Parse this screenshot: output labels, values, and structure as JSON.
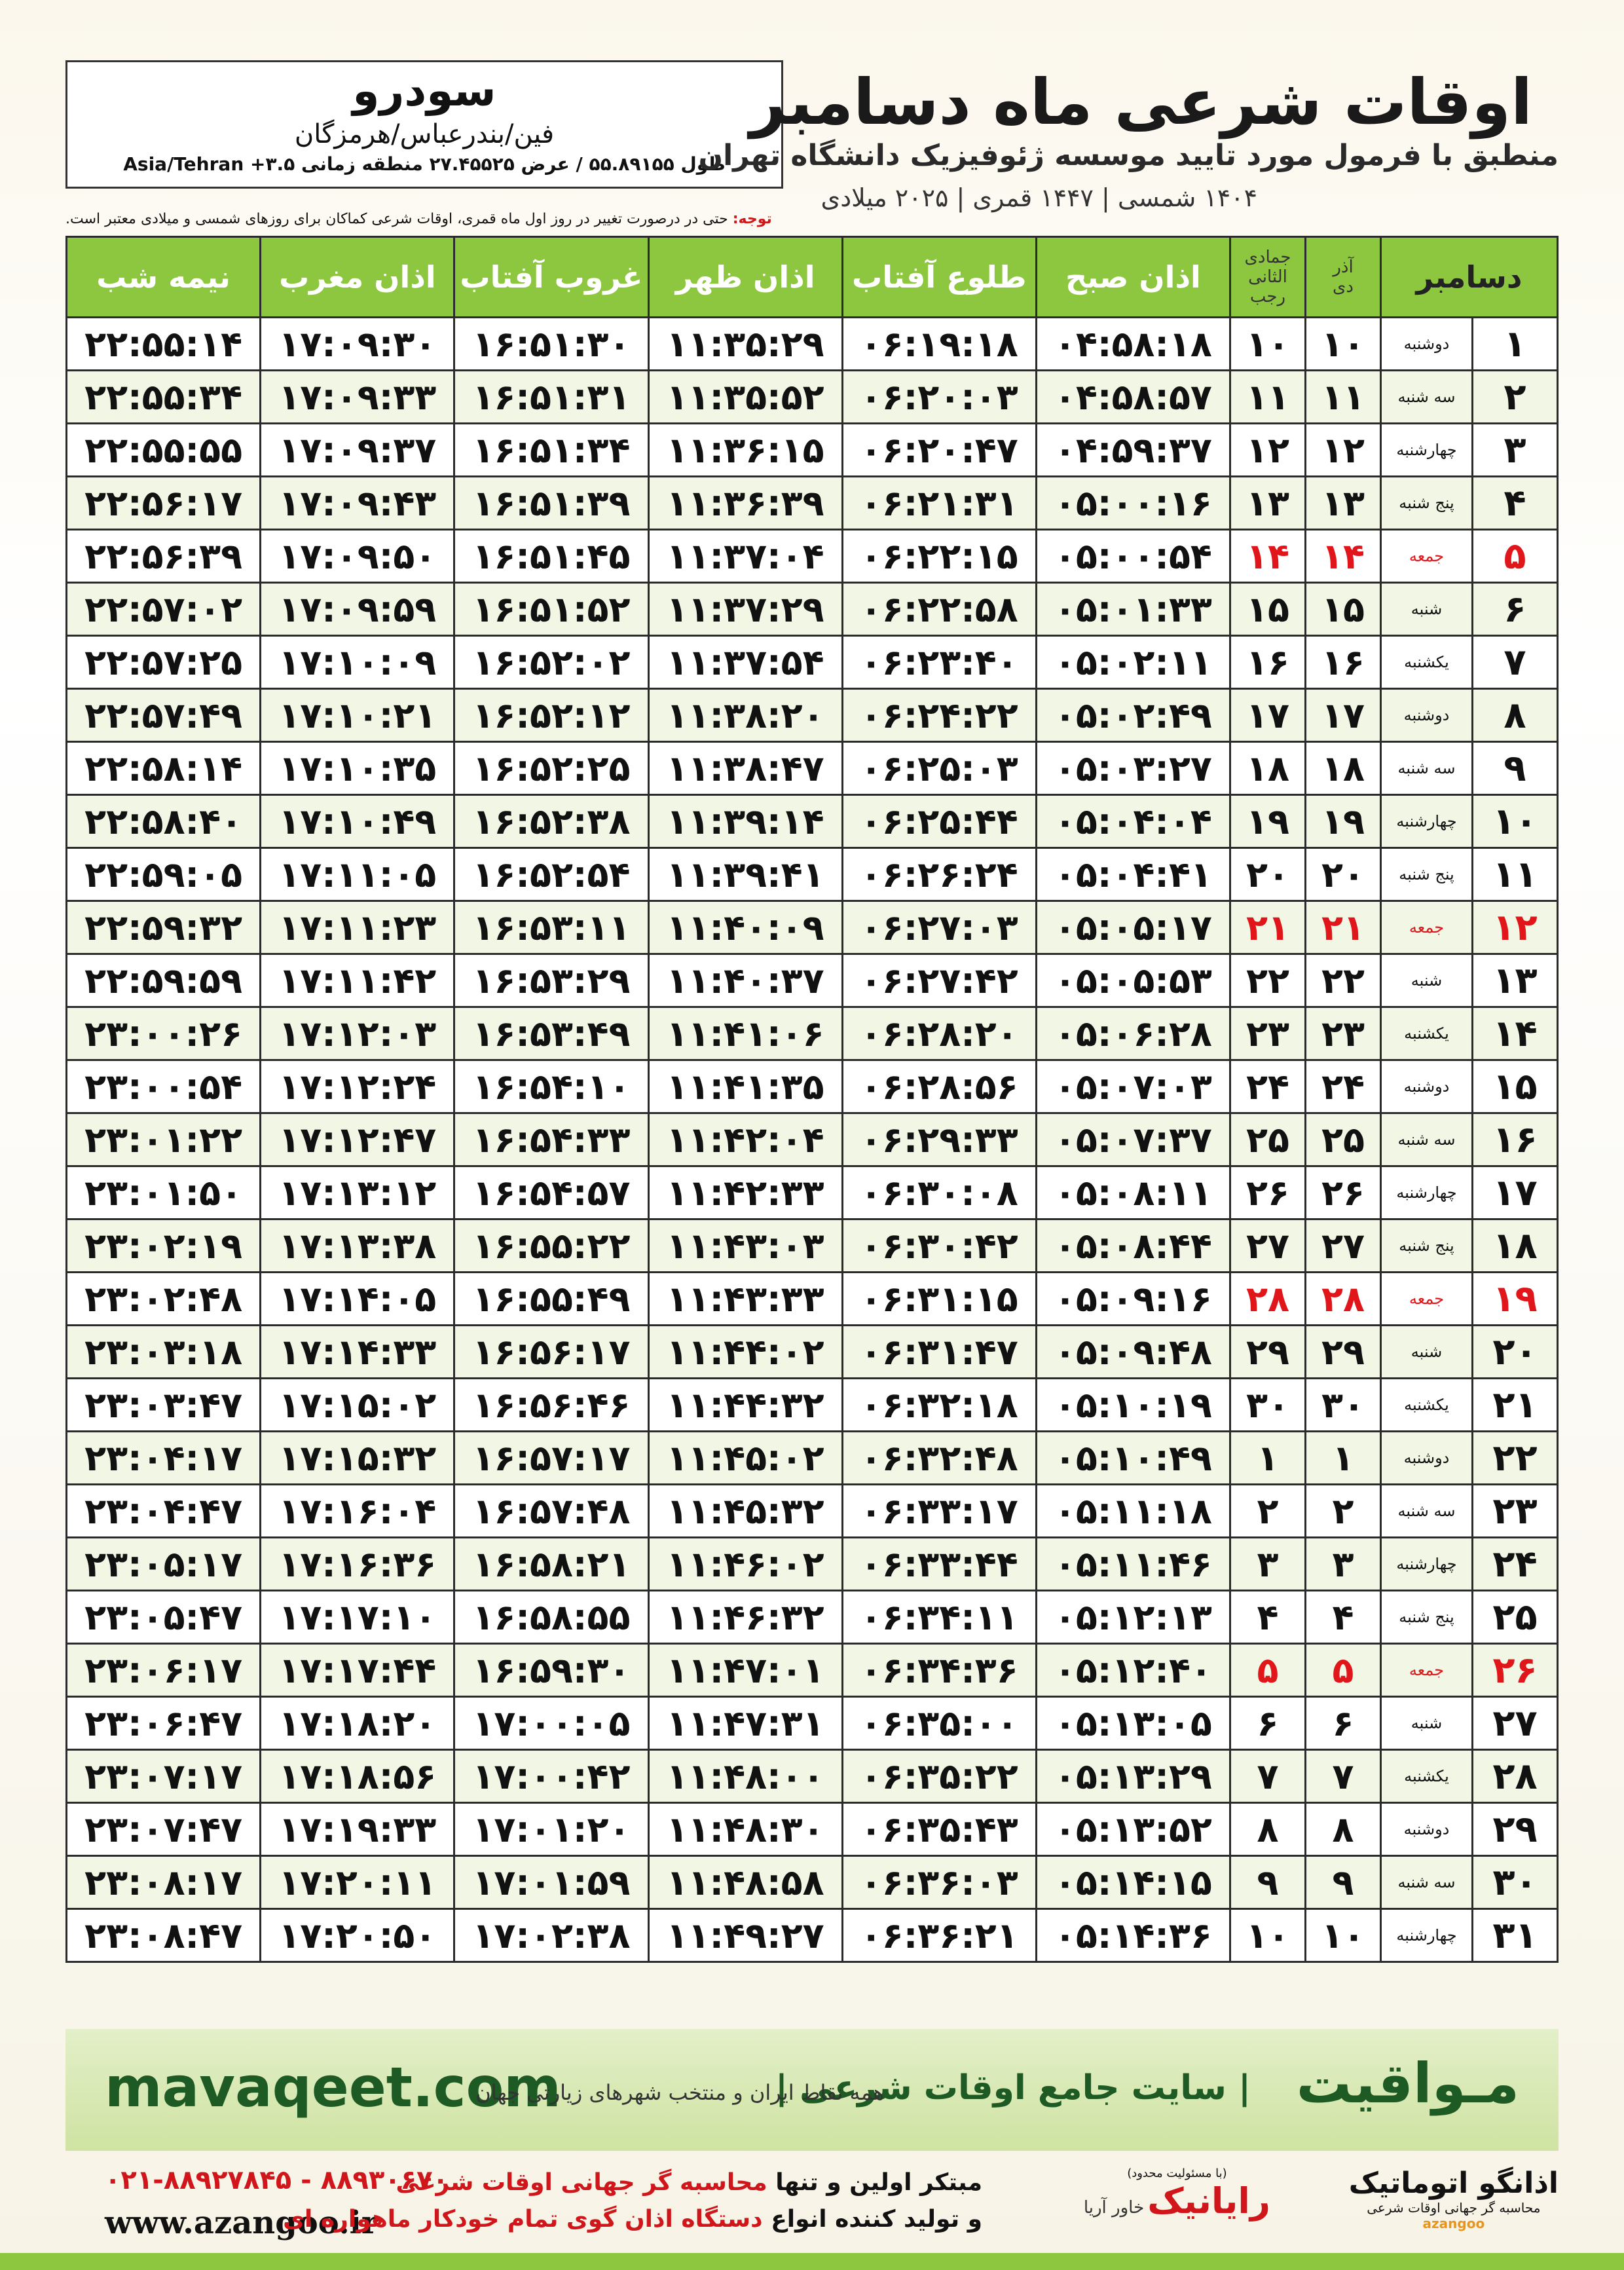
{
  "header": {
    "title": "اوقات شرعی ماه دسامبر",
    "subtitle": "منطبق با فرمول مورد تایید موسسه ژئوفیزیک دانشگاه تهران",
    "dates": "۱۴۰۴ شمسی | ۱۴۴۷ قمری | ۲۰۲۵ میلادی"
  },
  "city": {
    "name": "سودرو",
    "province": "فین/بندرعباس/هرمزگان",
    "coords": "طول ۵۵.۸۹۱۵۵ / عرض ۲۷.۴۵۵۲۵ منطقه زمانی ۳.۵+ Asia/Tehran"
  },
  "note": {
    "label": "توجه:",
    "text": "حتی در درصورت تغییر در روز اول ماه قمری، اوقات شرعی کماکان برای روزهای شمسی و میلادی معتبر است."
  },
  "table": {
    "header": {
      "day": "دسامبر",
      "solar_month": "آذر",
      "solar_sub": "دی",
      "lunar_month": "جمادی الثانی",
      "lunar_sub": "رجب",
      "times": [
        "اذان صبح",
        "طلوع آفتاب",
        "اذان ظهر",
        "غروب آفتاب",
        "اذان مغرب",
        "نیمه شب"
      ]
    },
    "rows": [
      [
        "۱",
        "دوشنبه",
        "۱۰",
        "۱۰",
        "۰۴:۵۸:۱۸",
        "۰۶:۱۹:۱۸",
        "۱۱:۳۵:۲۹",
        "۱۶:۵۱:۳۰",
        "۱۷:۰۹:۳۰",
        "۲۲:۵۵:۱۴"
      ],
      [
        "۲",
        "سه شنبه",
        "۱۱",
        "۱۱",
        "۰۴:۵۸:۵۷",
        "۰۶:۲۰:۰۳",
        "۱۱:۳۵:۵۲",
        "۱۶:۵۱:۳۱",
        "۱۷:۰۹:۳۳",
        "۲۲:۵۵:۳۴"
      ],
      [
        "۳",
        "چهارشنبه",
        "۱۲",
        "۱۲",
        "۰۴:۵۹:۳۷",
        "۰۶:۲۰:۴۷",
        "۱۱:۳۶:۱۵",
        "۱۶:۵۱:۳۴",
        "۱۷:۰۹:۳۷",
        "۲۲:۵۵:۵۵"
      ],
      [
        "۴",
        "پنج شنبه",
        "۱۳",
        "۱۳",
        "۰۵:۰۰:۱۶",
        "۰۶:۲۱:۳۱",
        "۱۱:۳۶:۳۹",
        "۱۶:۵۱:۳۹",
        "۱۷:۰۹:۴۳",
        "۲۲:۵۶:۱۷"
      ],
      [
        "۵",
        "جمعه",
        "۱۴",
        "۱۴",
        "۰۵:۰۰:۵۴",
        "۰۶:۲۲:۱۵",
        "۱۱:۳۷:۰۴",
        "۱۶:۵۱:۴۵",
        "۱۷:۰۹:۵۰",
        "۲۲:۵۶:۳۹"
      ],
      [
        "۶",
        "شنبه",
        "۱۵",
        "۱۵",
        "۰۵:۰۱:۳۳",
        "۰۶:۲۲:۵۸",
        "۱۱:۳۷:۲۹",
        "۱۶:۵۱:۵۲",
        "۱۷:۰۹:۵۹",
        "۲۲:۵۷:۰۲"
      ],
      [
        "۷",
        "یکشنبه",
        "۱۶",
        "۱۶",
        "۰۵:۰۲:۱۱",
        "۰۶:۲۳:۴۰",
        "۱۱:۳۷:۵۴",
        "۱۶:۵۲:۰۲",
        "۱۷:۱۰:۰۹",
        "۲۲:۵۷:۲۵"
      ],
      [
        "۸",
        "دوشنبه",
        "۱۷",
        "۱۷",
        "۰۵:۰۲:۴۹",
        "۰۶:۲۴:۲۲",
        "۱۱:۳۸:۲۰",
        "۱۶:۵۲:۱۲",
        "۱۷:۱۰:۲۱",
        "۲۲:۵۷:۴۹"
      ],
      [
        "۹",
        "سه شنبه",
        "۱۸",
        "۱۸",
        "۰۵:۰۳:۲۷",
        "۰۶:۲۵:۰۳",
        "۱۱:۳۸:۴۷",
        "۱۶:۵۲:۲۵",
        "۱۷:۱۰:۳۵",
        "۲۲:۵۸:۱۴"
      ],
      [
        "۱۰",
        "چهارشنبه",
        "۱۹",
        "۱۹",
        "۰۵:۰۴:۰۴",
        "۰۶:۲۵:۴۴",
        "۱۱:۳۹:۱۴",
        "۱۶:۵۲:۳۸",
        "۱۷:۱۰:۴۹",
        "۲۲:۵۸:۴۰"
      ],
      [
        "۱۱",
        "پنج شنبه",
        "۲۰",
        "۲۰",
        "۰۵:۰۴:۴۱",
        "۰۶:۲۶:۲۴",
        "۱۱:۳۹:۴۱",
        "۱۶:۵۲:۵۴",
        "۱۷:۱۱:۰۵",
        "۲۲:۵۹:۰۵"
      ],
      [
        "۱۲",
        "جمعه",
        "۲۱",
        "۲۱",
        "۰۵:۰۵:۱۷",
        "۰۶:۲۷:۰۳",
        "۱۱:۴۰:۰۹",
        "۱۶:۵۳:۱۱",
        "۱۷:۱۱:۲۳",
        "۲۲:۵۹:۳۲"
      ],
      [
        "۱۳",
        "شنبه",
        "۲۲",
        "۲۲",
        "۰۵:۰۵:۵۳",
        "۰۶:۲۷:۴۲",
        "۱۱:۴۰:۳۷",
        "۱۶:۵۳:۲۹",
        "۱۷:۱۱:۴۲",
        "۲۲:۵۹:۵۹"
      ],
      [
        "۱۴",
        "یکشنبه",
        "۲۳",
        "۲۳",
        "۰۵:۰۶:۲۸",
        "۰۶:۲۸:۲۰",
        "۱۱:۴۱:۰۶",
        "۱۶:۵۳:۴۹",
        "۱۷:۱۲:۰۳",
        "۲۳:۰۰:۲۶"
      ],
      [
        "۱۵",
        "دوشنبه",
        "۲۴",
        "۲۴",
        "۰۵:۰۷:۰۳",
        "۰۶:۲۸:۵۶",
        "۱۱:۴۱:۳۵",
        "۱۶:۵۴:۱۰",
        "۱۷:۱۲:۲۴",
        "۲۳:۰۰:۵۴"
      ],
      [
        "۱۶",
        "سه شنبه",
        "۲۵",
        "۲۵",
        "۰۵:۰۷:۳۷",
        "۰۶:۲۹:۳۳",
        "۱۱:۴۲:۰۴",
        "۱۶:۵۴:۳۳",
        "۱۷:۱۲:۴۷",
        "۲۳:۰۱:۲۲"
      ],
      [
        "۱۷",
        "چهارشنبه",
        "۲۶",
        "۲۶",
        "۰۵:۰۸:۱۱",
        "۰۶:۳۰:۰۸",
        "۱۱:۴۲:۳۳",
        "۱۶:۵۴:۵۷",
        "۱۷:۱۳:۱۲",
        "۲۳:۰۱:۵۰"
      ],
      [
        "۱۸",
        "پنج شنبه",
        "۲۷",
        "۲۷",
        "۰۵:۰۸:۴۴",
        "۰۶:۳۰:۴۲",
        "۱۱:۴۳:۰۳",
        "۱۶:۵۵:۲۲",
        "۱۷:۱۳:۳۸",
        "۲۳:۰۲:۱۹"
      ],
      [
        "۱۹",
        "جمعه",
        "۲۸",
        "۲۸",
        "۰۵:۰۹:۱۶",
        "۰۶:۳۱:۱۵",
        "۱۱:۴۳:۳۳",
        "۱۶:۵۵:۴۹",
        "۱۷:۱۴:۰۵",
        "۲۳:۰۲:۴۸"
      ],
      [
        "۲۰",
        "شنبه",
        "۲۹",
        "۲۹",
        "۰۵:۰۹:۴۸",
        "۰۶:۳۱:۴۷",
        "۱۱:۴۴:۰۲",
        "۱۶:۵۶:۱۷",
        "۱۷:۱۴:۳۳",
        "۲۳:۰۳:۱۸"
      ],
      [
        "۲۱",
        "یکشنبه",
        "۳۰",
        "۳۰",
        "۰۵:۱۰:۱۹",
        "۰۶:۳۲:۱۸",
        "۱۱:۴۴:۳۲",
        "۱۶:۵۶:۴۶",
        "۱۷:۱۵:۰۲",
        "۲۳:۰۳:۴۷"
      ],
      [
        "۲۲",
        "دوشنبه",
        "۱",
        "۱",
        "۰۵:۱۰:۴۹",
        "۰۶:۳۲:۴۸",
        "۱۱:۴۵:۰۲",
        "۱۶:۵۷:۱۷",
        "۱۷:۱۵:۳۲",
        "۲۳:۰۴:۱۷"
      ],
      [
        "۲۳",
        "سه شنبه",
        "۲",
        "۲",
        "۰۵:۱۱:۱۸",
        "۰۶:۳۳:۱۷",
        "۱۱:۴۵:۳۲",
        "۱۶:۵۷:۴۸",
        "۱۷:۱۶:۰۴",
        "۲۳:۰۴:۴۷"
      ],
      [
        "۲۴",
        "چهارشنبه",
        "۳",
        "۳",
        "۰۵:۱۱:۴۶",
        "۰۶:۳۳:۴۴",
        "۱۱:۴۶:۰۲",
        "۱۶:۵۸:۲۱",
        "۱۷:۱۶:۳۶",
        "۲۳:۰۵:۱۷"
      ],
      [
        "۲۵",
        "پنج شنبه",
        "۴",
        "۴",
        "۰۵:۱۲:۱۳",
        "۰۶:۳۴:۱۱",
        "۱۱:۴۶:۳۲",
        "۱۶:۵۸:۵۵",
        "۱۷:۱۷:۱۰",
        "۲۳:۰۵:۴۷"
      ],
      [
        "۲۶",
        "جمعه",
        "۵",
        "۵",
        "۰۵:۱۲:۴۰",
        "۰۶:۳۴:۳۶",
        "۱۱:۴۷:۰۱",
        "۱۶:۵۹:۳۰",
        "۱۷:۱۷:۴۴",
        "۲۳:۰۶:۱۷"
      ],
      [
        "۲۷",
        "شنبه",
        "۶",
        "۶",
        "۰۵:۱۳:۰۵",
        "۰۶:۳۵:۰۰",
        "۱۱:۴۷:۳۱",
        "۱۷:۰۰:۰۵",
        "۱۷:۱۸:۲۰",
        "۲۳:۰۶:۴۷"
      ],
      [
        "۲۸",
        "یکشنبه",
        "۷",
        "۷",
        "۰۵:۱۳:۲۹",
        "۰۶:۳۵:۲۲",
        "۱۱:۴۸:۰۰",
        "۱۷:۰۰:۴۲",
        "۱۷:۱۸:۵۶",
        "۲۳:۰۷:۱۷"
      ],
      [
        "۲۹",
        "دوشنبه",
        "۸",
        "۸",
        "۰۵:۱۳:۵۲",
        "۰۶:۳۵:۴۳",
        "۱۱:۴۸:۳۰",
        "۱۷:۰۱:۲۰",
        "۱۷:۱۹:۳۳",
        "۲۳:۰۷:۴۷"
      ],
      [
        "۳۰",
        "سه شنبه",
        "۹",
        "۹",
        "۰۵:۱۴:۱۵",
        "۰۶:۳۶:۰۳",
        "۱۱:۴۸:۵۸",
        "۱۷:۰۱:۵۹",
        "۱۷:۲۰:۱۱",
        "۲۳:۰۸:۱۷"
      ],
      [
        "۳۱",
        "چهارشنبه",
        "۱۰",
        "۱۰",
        "۰۵:۱۴:۳۶",
        "۰۶:۳۶:۲۱",
        "۱۱:۴۹:۲۷",
        "۱۷:۰۲:۳۸",
        "۱۷:۲۰:۵۰",
        "۲۳:۰۸:۴۷"
      ]
    ]
  },
  "footer": {
    "site": "mavaqeet.com",
    "brand": "مـواقیت",
    "slogan": "| سایت جامع اوقات شرعی |",
    "slogan2": "همه نقاط ایران و منتخب شهرهای زیارتی جهان"
  },
  "bottom": {
    "phone": "۰۲۱-۸۸۹۲۷۸۴۵ - ۸۸۹۳۰۶۷۰",
    "web": "www.azangoo.ir",
    "desc1_a": "مبتکر اولین و تنها",
    "desc1_b": "محاسبه گر جهانی اوقات شرعی",
    "desc2_a": "و تولید کننده انواع",
    "desc2_b": "دستگاه اذان گوی تمام خودکار ماهواره ای",
    "logo1_small": "(با مسئولیت محدود)",
    "logo1_name": "رایانیک",
    "logo1_sub": "خاور آریا",
    "logo2_name": "اذانگو اتوماتیک",
    "logo2_sub": "محاسبه گر جهانی اوقات شرعی",
    "logo2_en": "azangoo"
  }
}
